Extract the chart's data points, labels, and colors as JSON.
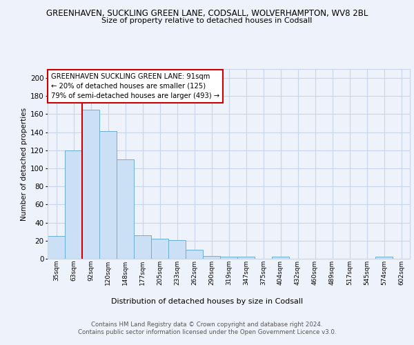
{
  "title1": "GREENHAVEN, SUCKLING GREEN LANE, CODSALL, WOLVERHAMPTON, WV8 2BL",
  "title2": "Size of property relative to detached houses in Codsall",
  "xlabel": "Distribution of detached houses by size in Codsall",
  "ylabel": "Number of detached properties",
  "bar_labels": [
    "35sqm",
    "63sqm",
    "92sqm",
    "120sqm",
    "148sqm",
    "177sqm",
    "205sqm",
    "233sqm",
    "262sqm",
    "290sqm",
    "319sqm",
    "347sqm",
    "375sqm",
    "404sqm",
    "432sqm",
    "460sqm",
    "489sqm",
    "517sqm",
    "545sqm",
    "574sqm",
    "602sqm"
  ],
  "bar_values": [
    25,
    120,
    165,
    141,
    110,
    26,
    22,
    21,
    10,
    3,
    2,
    2,
    0,
    2,
    0,
    0,
    0,
    0,
    0,
    2,
    0
  ],
  "bar_color": "#cce0f5",
  "bar_edge_color": "#6aaed6",
  "red_line_color": "#cc0000",
  "annotation_text": "GREENHAVEN SUCKLING GREEN LANE: 91sqm\n← 20% of detached houses are smaller (125)\n79% of semi-detached houses are larger (493) →",
  "annotation_box_color": "white",
  "annotation_box_edge_color": "#cc0000",
  "ylim": [
    0,
    210
  ],
  "yticks": [
    0,
    20,
    40,
    60,
    80,
    100,
    120,
    140,
    160,
    180,
    200
  ],
  "footer_line1": "Contains HM Land Registry data © Crown copyright and database right 2024.",
  "footer_line2": "Contains public sector information licensed under the Open Government Licence v3.0.",
  "bg_color": "#eef2fa",
  "grid_color": "#c8d4e8",
  "property_bar_index": 2,
  "fig_width": 6.0,
  "fig_height": 5.0,
  "dpi": 100
}
